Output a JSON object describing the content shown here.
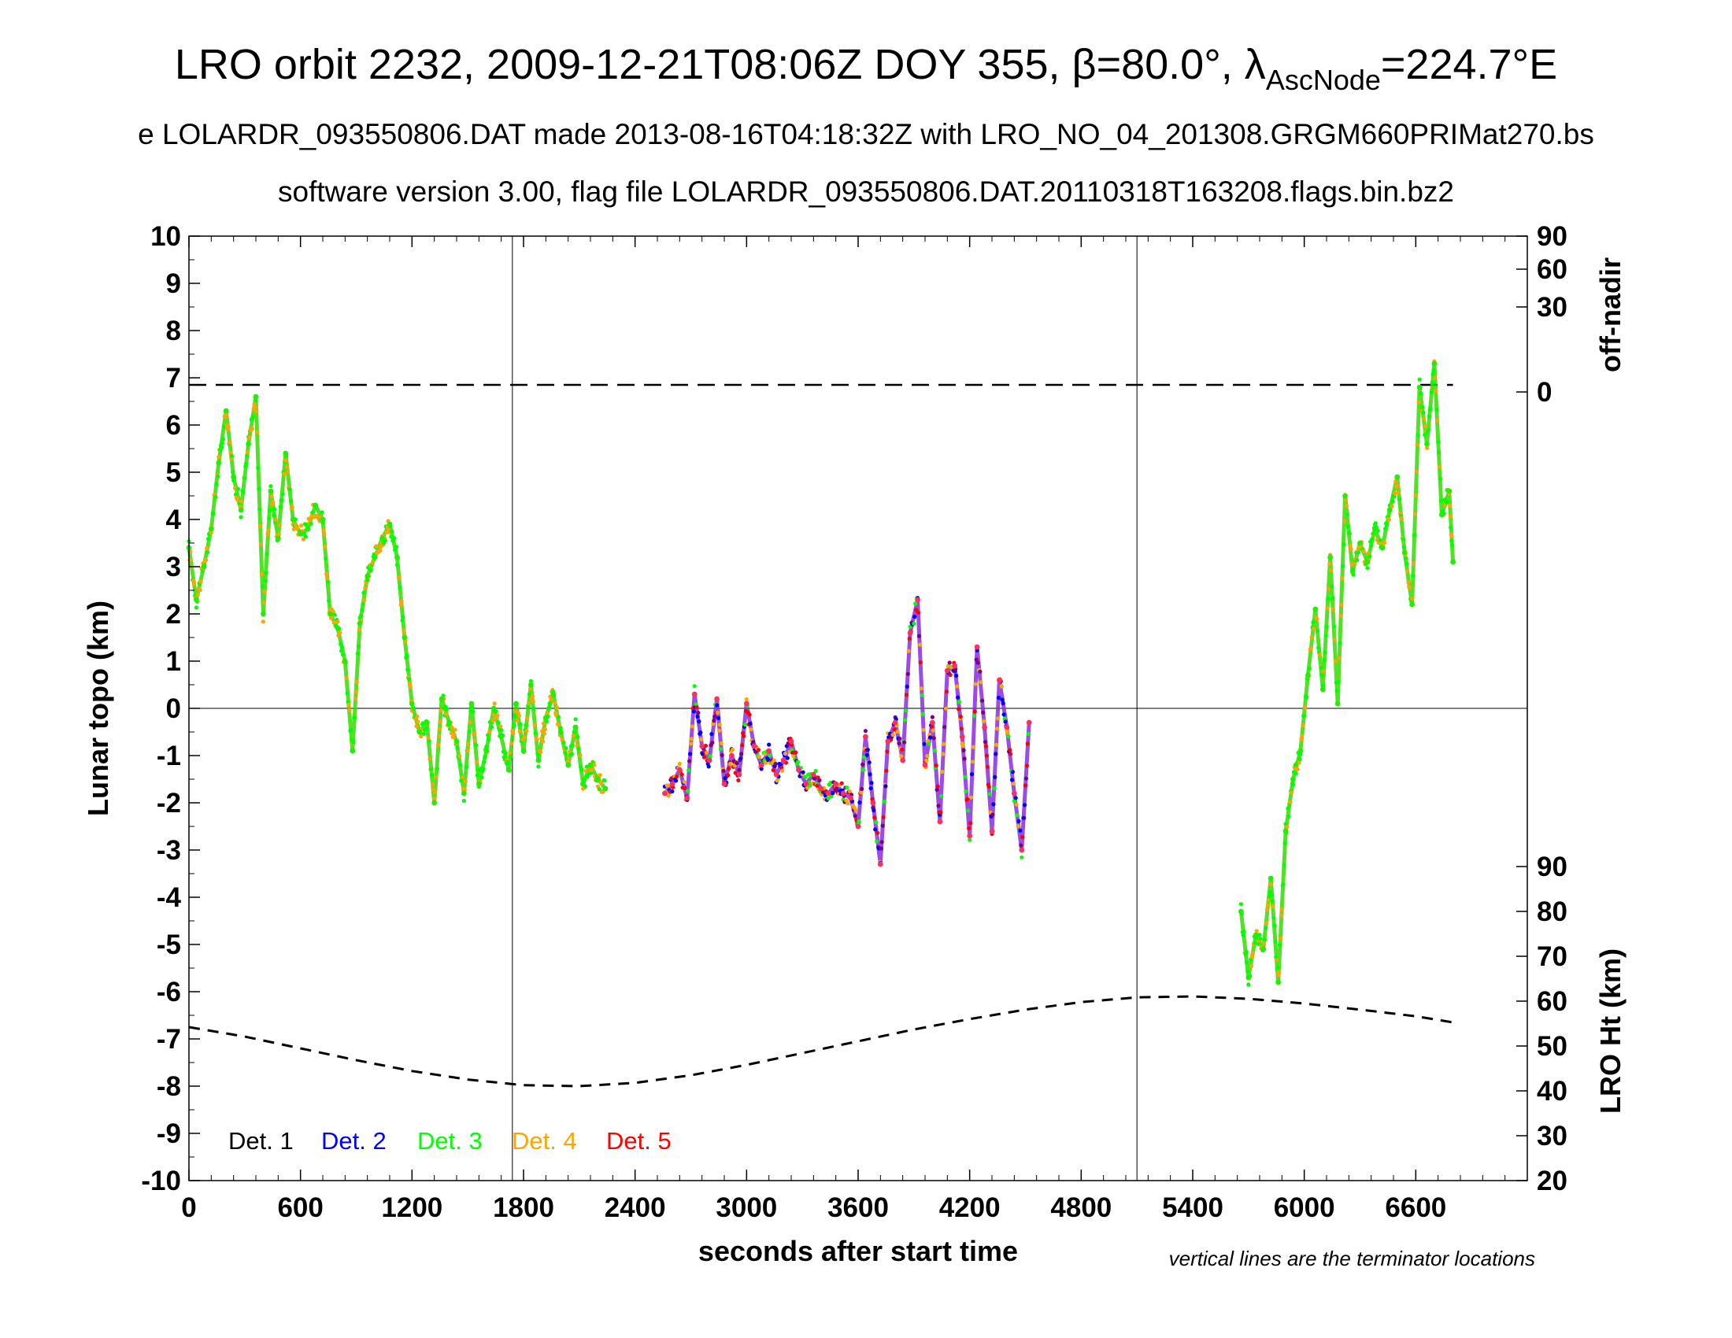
{
  "chart_data": {
    "type": "scatter",
    "title": "LRO orbit 2232, 2009-12-21T08:06Z DOY 355, β=80.0°, λ",
    "title_subscript": "AscNode",
    "title_suffix": "=224.7°E",
    "subtitle_line1": "e LOLARDR_093550806.DAT made 2013-08-16T04:18:32Z with LRO_NO_04_201308.GRGM660PRIMat270.bs",
    "subtitle_line2": "software version 3.00, flag file LOLARDR_093550806.DAT.20110318T163208.flags.bin.bz2",
    "xlabel": "seconds after start time",
    "ylabel": "Lunar topo (km)",
    "y2label_top": "off-nadir",
    "y2label_bottom": "LRO Ht (km)",
    "note": "vertical lines are the terminator locations",
    "xlim": [
      0,
      7200
    ],
    "ylim": [
      -10,
      10
    ],
    "x_ticks": [
      "0",
      "600",
      "1200",
      "1800",
      "2400",
      "3000",
      "3600",
      "4200",
      "4800",
      "5400",
      "6000",
      "6600"
    ],
    "y_ticks": [
      "10",
      "9",
      "8",
      "7",
      "6",
      "5",
      "4",
      "3",
      "2",
      "1",
      "0",
      "-1",
      "-2",
      "-3",
      "-4",
      "-5",
      "-6",
      "-7",
      "-8",
      "-9",
      "-10"
    ],
    "offnadir_ticks": [
      {
        "label": "90",
        "y": 10.0
      },
      {
        "label": "60",
        "y": 9.3
      },
      {
        "label": "30",
        "y": 8.5
      },
      {
        "label": "0",
        "y": 6.7
      }
    ],
    "height_ticks": [
      {
        "label": "90",
        "y": -3.35
      },
      {
        "label": "80",
        "y": -4.3
      },
      {
        "label": "70",
        "y": -5.25
      },
      {
        "label": "60",
        "y": -6.2
      },
      {
        "label": "50",
        "y": -7.15
      },
      {
        "label": "40",
        "y": -8.1
      },
      {
        "label": "30",
        "y": -9.05
      },
      {
        "label": "20",
        "y": -10.0
      }
    ],
    "terminators": [
      1740,
      5100
    ],
    "zero_line": 0,
    "offnadir_line_y": 6.85,
    "offnadir_line_xlim": [
      0,
      6800
    ],
    "grid": false,
    "legend_position": "bottom-left",
    "legend": [
      {
        "label": "Det. 1",
        "color": "#000000"
      },
      {
        "label": "Det. 2",
        "color": "#0000ff"
      },
      {
        "label": "Det. 3",
        "color": "#00ff00"
      },
      {
        "label": "Det. 4",
        "color": "#ffa500"
      },
      {
        "label": "Det. 5",
        "color": "#ff0000"
      }
    ],
    "lro_height": {
      "name": "LRO Ht",
      "x": [
        0,
        300,
        600,
        900,
        1200,
        1500,
        1800,
        2100,
        2400,
        2700,
        3000,
        3300,
        3600,
        3900,
        4200,
        4500,
        4800,
        5100,
        5400,
        5700,
        6000,
        6300,
        6600,
        6800
      ],
      "y": [
        -6.75,
        -6.95,
        -7.2,
        -7.45,
        -7.68,
        -7.86,
        -7.98,
        -8.0,
        -7.93,
        -7.77,
        -7.55,
        -7.3,
        -7.05,
        -6.8,
        -6.58,
        -6.38,
        -6.22,
        -6.12,
        -6.1,
        -6.15,
        -6.25,
        -6.38,
        -6.52,
        -6.65
      ]
    },
    "series": [
      {
        "name": "Det. 3",
        "segment": "A",
        "x": [
          0,
          40,
          80,
          120,
          160,
          200,
          240,
          280,
          320,
          360,
          400,
          440,
          480,
          520,
          560,
          600,
          640,
          680,
          720,
          760,
          800,
          840,
          880,
          920,
          960,
          1000,
          1040,
          1080,
          1120,
          1160,
          1200,
          1240,
          1280,
          1320,
          1360,
          1400,
          1440,
          1480,
          1520,
          1560,
          1600,
          1640,
          1680,
          1720,
          1760,
          1800,
          1840,
          1880,
          1920,
          1960,
          2000,
          2040,
          2080,
          2120,
          2160,
          2200,
          2240
        ],
        "y": [
          3.4,
          2.3,
          3.0,
          3.8,
          5.2,
          6.3,
          4.9,
          4.2,
          5.6,
          6.6,
          2.0,
          4.6,
          3.6,
          5.4,
          4.0,
          3.7,
          3.8,
          4.3,
          4.0,
          2.0,
          1.7,
          1.0,
          -0.9,
          1.8,
          2.8,
          3.2,
          3.6,
          3.9,
          3.2,
          1.5,
          0.1,
          -0.5,
          -0.3,
          -2.0,
          0.2,
          -0.3,
          -0.7,
          -1.8,
          0.1,
          -1.6,
          -0.9,
          0.0,
          -0.6,
          -1.3,
          0.1,
          -0.9,
          0.5,
          -1.1,
          -0.2,
          0.3,
          -0.5,
          -1.2,
          -0.4,
          -1.6,
          -1.2,
          -1.5,
          -1.7
        ]
      },
      {
        "name": "Det. 3",
        "segment": "B",
        "x": [
          2560,
          2600,
          2640,
          2680,
          2720,
          2760,
          2800,
          2840,
          2880,
          2920,
          2960,
          3000,
          3040,
          3080,
          3120,
          3160,
          3200,
          3240,
          3280,
          3320,
          3360,
          3400,
          3440,
          3480,
          3520,
          3560,
          3600,
          3640,
          3680,
          3720,
          3760,
          3800,
          3840,
          3880,
          3920,
          3960,
          4000,
          4040,
          4080,
          4120,
          4160,
          4200,
          4240,
          4280,
          4320,
          4360,
          4400,
          4440,
          4480,
          4520
        ],
        "y": [
          -1.8,
          -1.6,
          -1.3,
          -1.9,
          0.3,
          -0.8,
          -1.1,
          0.2,
          -1.6,
          -1.0,
          -1.4,
          0.1,
          -0.8,
          -1.2,
          -0.9,
          -1.4,
          -1.1,
          -0.7,
          -1.3,
          -1.6,
          -1.4,
          -1.7,
          -1.8,
          -1.6,
          -1.8,
          -1.9,
          -2.5,
          -0.6,
          -2.0,
          -3.3,
          -0.7,
          -0.3,
          -1.1,
          1.6,
          2.3,
          -1.2,
          -0.3,
          -2.4,
          0.8,
          0.9,
          -0.6,
          -2.7,
          1.3,
          -0.4,
          -2.6,
          0.6,
          -0.4,
          -1.8,
          -3.0,
          -0.3
        ]
      },
      {
        "name": "Det. 3",
        "segment": "C",
        "x": [
          5660,
          5700,
          5740,
          5780,
          5820,
          5860,
          5900,
          5940,
          5980,
          6020,
          6060,
          6100,
          6140,
          6180,
          6220,
          6260,
          6300,
          6340,
          6380,
          6420,
          6460,
          6500,
          6540,
          6580,
          6620,
          6660,
          6700,
          6740,
          6780,
          6800
        ],
        "y": [
          -4.3,
          -5.7,
          -4.8,
          -5.1,
          -3.6,
          -5.8,
          -2.6,
          -1.5,
          -0.9,
          0.7,
          2.1,
          0.4,
          3.2,
          0.1,
          4.5,
          2.9,
          3.5,
          3.1,
          3.8,
          3.4,
          4.2,
          4.9,
          3.3,
          2.2,
          6.8,
          5.6,
          7.3,
          4.1,
          4.6,
          3.1
        ]
      }
    ]
  }
}
